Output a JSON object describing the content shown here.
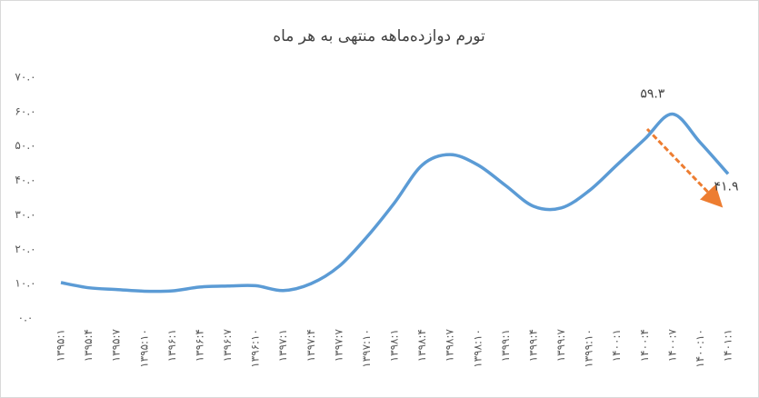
{
  "chart_data": {
    "type": "line",
    "title": "تورم دوازده‌ماهه منتهی به هر ماه",
    "categories": [
      "۱۳۹۵:۱",
      "۱۳۹۵:۴",
      "۱۳۹۵:۷",
      "۱۳۹۵:۱۰",
      "۱۳۹۶:۱",
      "۱۳۹۶:۴",
      "۱۳۹۶:۷",
      "۱۳۹۶:۱۰",
      "۱۳۹۷:۱",
      "۱۳۹۷:۴",
      "۱۳۹۷:۷",
      "۱۳۹۷:۱۰",
      "۱۳۹۸:۱",
      "۱۳۹۸:۴",
      "۱۳۹۸:۷",
      "۱۳۹۸:۱۰",
      "۱۳۹۹:۱",
      "۱۳۹۹:۴",
      "۱۳۹۹:۷",
      "۱۳۹۹:۱۰",
      "۱۴۰۰:۱",
      "۱۴۰۰:۴",
      "۱۴۰۰:۷",
      "۱۴۰۰:۱۰",
      "۱۴۰۱:۱"
    ],
    "series": [
      {
        "color": "#5b9bd5",
        "values": [
          10.3,
          8.8,
          8.3,
          7.8,
          7.9,
          9.0,
          9.3,
          9.4,
          8.0,
          10.0,
          15,
          23.5,
          33.5,
          44.5,
          47.5,
          44.5,
          38.5,
          32.5,
          32,
          37,
          44.5,
          52,
          59.3,
          51,
          41.9
        ],
        "value_labels": [
          null,
          null,
          null,
          null,
          null,
          null,
          null,
          null,
          null,
          null,
          null,
          null,
          null,
          null,
          null,
          null,
          null,
          null,
          null,
          null,
          null,
          null,
          "۵۹.۳",
          null,
          "۴۱.۹"
        ]
      }
    ],
    "ylim": [
      0,
      70
    ],
    "yticks": [
      {
        "value": 0,
        "label": "۰.۰"
      },
      {
        "value": 10,
        "label": "۱۰.۰"
      },
      {
        "value": 20,
        "label": "۲۰.۰"
      },
      {
        "value": 30,
        "label": "۳۰.۰"
      },
      {
        "value": 40,
        "label": "۴۰.۰"
      },
      {
        "value": 50,
        "label": "۵۰.۰"
      },
      {
        "value": 60,
        "label": "۶۰.۰"
      },
      {
        "value": 70,
        "label": "۷۰.۰"
      }
    ],
    "grid": false
  }
}
